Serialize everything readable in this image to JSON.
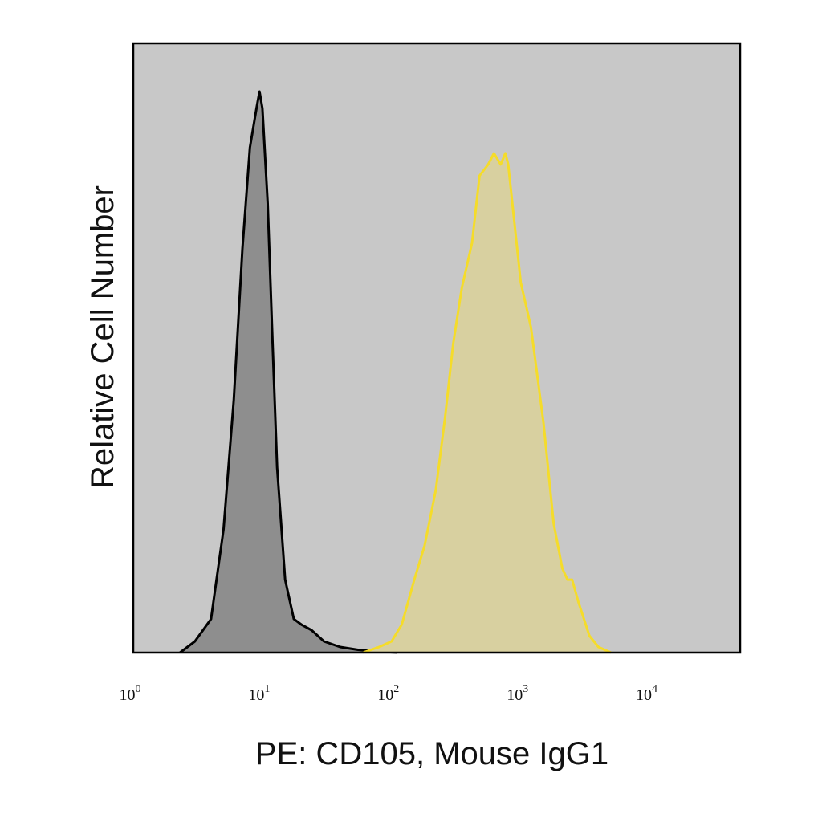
{
  "chart_data": {
    "type": "area",
    "title": "",
    "xlabel": "PE: CD105, Mouse IgG1",
    "ylabel": "Relative Cell Number",
    "xscale": "log",
    "xlim": [
      1,
      50000
    ],
    "ylim": [
      0,
      1
    ],
    "grid": false,
    "y_ticks": "none",
    "x_ticks": [
      {
        "value": 1,
        "base": "10",
        "exp": "0"
      },
      {
        "value": 10,
        "base": "10",
        "exp": "1"
      },
      {
        "value": 100,
        "base": "10",
        "exp": "2"
      },
      {
        "value": 1000,
        "base": "10",
        "exp": "3"
      },
      {
        "value": 10000,
        "base": "10",
        "exp": "4"
      }
    ],
    "colors": {
      "plot_background": "#c8c8c8",
      "frame": "#000000"
    },
    "series": [
      {
        "fill": "#8e8e8e",
        "stroke": "#000000",
        "x": [
          2.3,
          3.0,
          4.0,
          5.0,
          6.0,
          7.0,
          8.0,
          9.0,
          9.5,
          10.0,
          11.0,
          12.0,
          13.0,
          15.0,
          17.5,
          20.0,
          24.0,
          30.0,
          40.0,
          55.0,
          80.0,
          110.0
        ],
        "y": [
          0.0,
          0.02,
          0.06,
          0.22,
          0.45,
          0.72,
          0.9,
          0.97,
          1.0,
          0.97,
          0.8,
          0.55,
          0.33,
          0.13,
          0.06,
          0.05,
          0.04,
          0.02,
          0.01,
          0.005,
          0.002,
          0.0
        ]
      },
      {
        "fill": "#d8d0a0",
        "stroke": "#f5dc2a",
        "x": [
          60,
          80,
          100,
          120,
          150,
          180,
          220,
          260,
          300,
          350,
          420,
          480,
          560,
          620,
          700,
          760,
          800,
          1000,
          1200,
          1500,
          1800,
          2100,
          2300,
          2500,
          2800,
          3400,
          4000,
          5000
        ],
        "y": [
          0.0,
          0.01,
          0.02,
          0.05,
          0.13,
          0.19,
          0.29,
          0.42,
          0.55,
          0.65,
          0.73,
          0.85,
          0.87,
          0.89,
          0.87,
          0.89,
          0.87,
          0.66,
          0.58,
          0.41,
          0.23,
          0.15,
          0.13,
          0.13,
          0.09,
          0.03,
          0.01,
          0.0
        ]
      }
    ]
  }
}
